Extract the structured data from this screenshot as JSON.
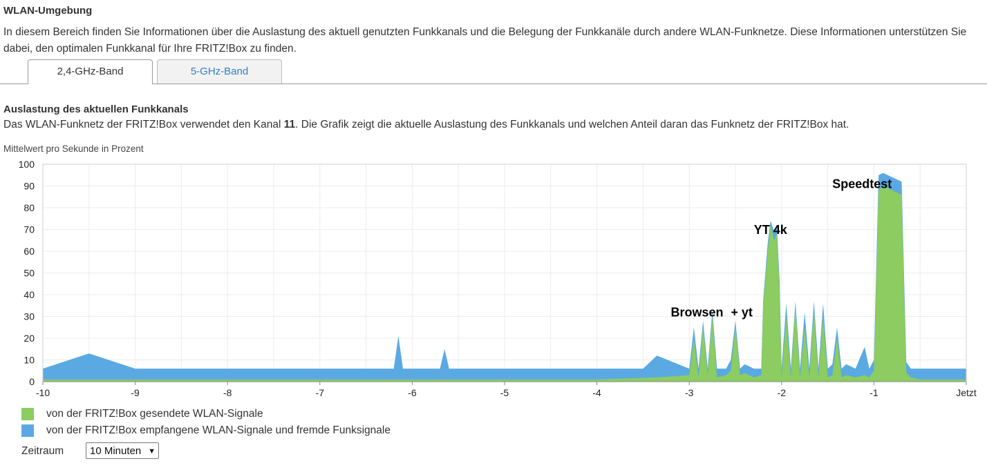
{
  "section": {
    "title": "WLAN-Umgebung",
    "intro": "In diesem Bereich finden Sie Informationen über die Auslastung des aktuell genutzten Funkkanals und die Belegung der Funkkanäle durch andere WLAN-Funknetze. Diese Informationen unterstützen Sie dabei, den optimalen Funkkanal für Ihre FRITZ!Box zu finden."
  },
  "tabs": [
    {
      "label": "2,4-GHz-Band",
      "active": true
    },
    {
      "label": "5-GHz-Band",
      "active": false
    }
  ],
  "channel_section": {
    "title": "Auslastung des aktuellen Funkkanals",
    "desc_before": "Das WLAN-Funknetz der FRITZ!Box verwendet den Kanal ",
    "channel": "11",
    "desc_after": ". Die Grafik zeigt die aktuelle Auslastung des Funkkanals und welchen Anteil daran das Funknetz der FRITZ!Box hat.",
    "unit_label": "Mittelwert pro Sekunde in Prozent"
  },
  "colors": {
    "sent": "#8ccc60",
    "received": "#5aa9e3"
  },
  "chart_data": {
    "type": "area",
    "x_ticks": [
      "-10",
      "-9",
      "-8",
      "-7",
      "-6",
      "-5",
      "-4",
      "-3",
      "-2",
      "-1",
      "Jetzt"
    ],
    "y_ticks": [
      "0",
      "10",
      "20",
      "30",
      "40",
      "50",
      "60",
      "70",
      "80",
      "90",
      "100"
    ],
    "xlim": [
      -10,
      0
    ],
    "ylim": [
      0,
      100
    ],
    "grid": true,
    "annotations": [
      {
        "text": "Browsen",
        "x": -3.2,
        "y": 30
      },
      {
        "text": "+ yt",
        "x": -2.55,
        "y": 30
      },
      {
        "text": "YT 4k",
        "x": -2.3,
        "y": 68
      },
      {
        "text": "Speedtest",
        "x": -1.45,
        "y": 89
      }
    ],
    "series": [
      {
        "name": "von der FRITZ!Box gesendete WLAN-Signale",
        "x": [
          -10,
          -9.5,
          -9,
          -8,
          -7,
          -6,
          -5,
          -4,
          -3.35,
          -3.0,
          -2.95,
          -2.9,
          -2.85,
          -2.8,
          -2.75,
          -2.7,
          -2.6,
          -2.55,
          -2.5,
          -2.45,
          -2.4,
          -2.3,
          -2.22,
          -2.2,
          -2.15,
          -2.12,
          -2.08,
          -2.05,
          -2.02,
          -2.0,
          -1.95,
          -1.9,
          -1.85,
          -1.8,
          -1.75,
          -1.7,
          -1.65,
          -1.6,
          -1.55,
          -1.5,
          -1.45,
          -1.4,
          -1.35,
          -1.3,
          -1.2,
          -1.1,
          -1.05,
          -1.0,
          -0.95,
          -0.9,
          -0.85,
          -0.8,
          -0.75,
          -0.7,
          -0.65,
          -0.6,
          -0.5,
          0
        ],
        "y": [
          1,
          1,
          1,
          1,
          1,
          1,
          1,
          1,
          2,
          3,
          20,
          2,
          25,
          3,
          30,
          2,
          3,
          5,
          25,
          3,
          4,
          2,
          3,
          35,
          60,
          72,
          65,
          68,
          40,
          2,
          30,
          2,
          35,
          2,
          25,
          2,
          33,
          2,
          30,
          2,
          3,
          20,
          2,
          3,
          2,
          3,
          2,
          5,
          88,
          90,
          89,
          88,
          87,
          86,
          4,
          2,
          1,
          1
        ]
      },
      {
        "name": "von der FRITZ!Box empfangene WLAN-Signale und fremde Funksignale",
        "x": [
          -10,
          -9.5,
          -9,
          -8,
          -7,
          -6.2,
          -6.15,
          -6.1,
          -5.7,
          -5.65,
          -5.6,
          -5,
          -4,
          -3.5,
          -3.35,
          -3.0,
          -2.95,
          -2.9,
          -2.85,
          -2.8,
          -2.75,
          -2.7,
          -2.6,
          -2.55,
          -2.5,
          -2.45,
          -2.4,
          -2.3,
          -2.22,
          -2.2,
          -2.15,
          -2.12,
          -2.08,
          -2.05,
          -2.02,
          -2.0,
          -1.95,
          -1.9,
          -1.85,
          -1.8,
          -1.75,
          -1.7,
          -1.65,
          -1.6,
          -1.55,
          -1.5,
          -1.45,
          -1.4,
          -1.35,
          -1.3,
          -1.2,
          -1.1,
          -1.05,
          -1.0,
          -0.95,
          -0.9,
          -0.85,
          -0.8,
          -0.75,
          -0.7,
          -0.65,
          -0.6,
          -0.5,
          0
        ],
        "y": [
          6,
          13,
          6,
          6,
          6,
          6,
          21,
          6,
          6,
          15,
          6,
          6,
          6,
          6,
          12,
          6,
          25,
          6,
          28,
          6,
          33,
          6,
          6,
          10,
          28,
          6,
          8,
          6,
          6,
          37,
          64,
          74,
          69,
          71,
          45,
          6,
          36,
          6,
          37,
          6,
          32,
          6,
          37,
          6,
          36,
          6,
          8,
          25,
          6,
          8,
          6,
          16,
          6,
          10,
          95,
          96,
          95,
          94,
          93,
          92,
          9,
          6,
          6,
          6
        ]
      }
    ]
  },
  "legend": [
    {
      "label": "von der FRITZ!Box gesendete WLAN-Signale"
    },
    {
      "label": "von der FRITZ!Box empfangene WLAN-Signale und fremde Funksignale"
    }
  ],
  "period": {
    "label": "Zeitraum",
    "selected": "10 Minuten"
  }
}
